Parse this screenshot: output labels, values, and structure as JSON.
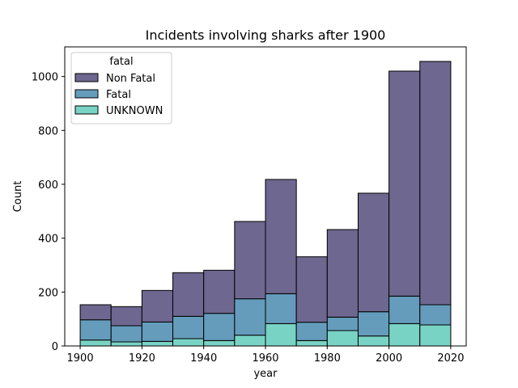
{
  "chart_data": {
    "type": "bar",
    "stacked": true,
    "title": "Incidents involving sharks after 1900",
    "xlabel": "year",
    "ylabel": "Count",
    "xlim": [
      1895,
      2025
    ],
    "ylim": [
      0,
      1110
    ],
    "x_ticks": [
      1900,
      1920,
      1940,
      1960,
      1980,
      2000,
      2020
    ],
    "y_ticks": [
      0,
      200,
      400,
      600,
      800,
      1000
    ],
    "bin_edges": [
      1900,
      1910,
      1920,
      1930,
      1940,
      1950,
      1960,
      1970,
      1980,
      1990,
      2000,
      2010,
      2020
    ],
    "legend": {
      "title": "fatal",
      "placement": "top-left"
    },
    "series": [
      {
        "name": "UNKNOWN",
        "color": "#79d3c4",
        "values": [
          22,
          15,
          17,
          27,
          20,
          40,
          83,
          20,
          57,
          37,
          83,
          78
        ]
      },
      {
        "name": "Fatal",
        "color": "#659cbb",
        "values": [
          75,
          60,
          72,
          83,
          101,
          135,
          111,
          68,
          50,
          90,
          102,
          75
        ]
      },
      {
        "name": "Non Fatal",
        "color": "#6e6790",
        "values": [
          56,
          71,
          117,
          162,
          160,
          287,
          424,
          243,
          325,
          440,
          835,
          903
        ]
      }
    ],
    "legend_order": [
      "Non Fatal",
      "Fatal",
      "UNKNOWN"
    ]
  }
}
